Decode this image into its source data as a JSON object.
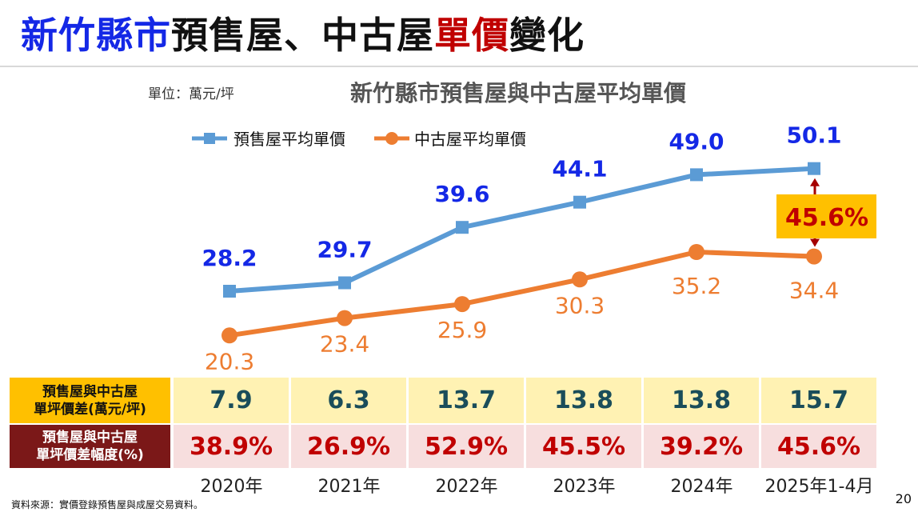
{
  "slide": {
    "title_parts": [
      "新竹縣市",
      "預售屋、中古屋",
      "單價",
      "變化"
    ],
    "unit": "單位：萬元/坪",
    "source": "資料來源：實價登錄預售屋與成屋交易資料。",
    "page_number": "20"
  },
  "chart_data": {
    "type": "line",
    "title": "新竹縣市預售屋與中古屋平均單價",
    "categories": [
      "2020年",
      "2021年",
      "2022年",
      "2023年",
      "2024年",
      "2025年1-4月"
    ],
    "series": [
      {
        "name": "預售屋平均單價",
        "color": "#5b9bd5",
        "label_color": "#1428e6",
        "values": [
          28.2,
          29.7,
          39.6,
          44.1,
          49.0,
          50.1
        ],
        "labels": [
          "28.2",
          "29.7",
          "39.6",
          "44.1",
          "49.0",
          "50.1"
        ]
      },
      {
        "name": "中古屋平均單價",
        "color": "#ed7d31",
        "label_color": "#ed7d31",
        "values": [
          20.3,
          23.4,
          25.9,
          30.3,
          35.2,
          34.4
        ],
        "labels": [
          "20.3",
          "23.4",
          "25.9",
          "30.3",
          "35.2",
          "34.4"
        ]
      }
    ],
    "annotation": {
      "text": "45.6%",
      "background": "#ffc000",
      "color": "#c00000"
    }
  },
  "table": {
    "row1_label": [
      "預售屋與中古屋",
      "單坪價差(萬元/坪)"
    ],
    "row1_values": [
      "7.9",
      "6.3",
      "13.7",
      "13.8",
      "13.8",
      "15.7"
    ],
    "row2_label": [
      "預售屋與中古屋",
      "單坪價差幅度(%)"
    ],
    "row2_values": [
      "38.9%",
      "26.9%",
      "52.9%",
      "45.5%",
      "39.2%",
      "45.6%"
    ]
  }
}
